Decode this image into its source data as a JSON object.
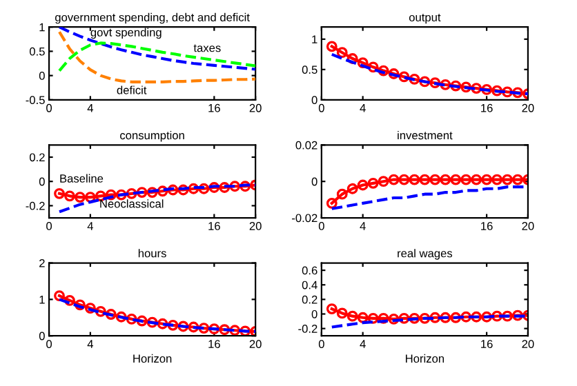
{
  "chart_data": [
    {
      "type": "line",
      "title": "government spending, debt and deficit",
      "x": [
        1,
        2,
        3,
        4,
        5,
        6,
        7,
        8,
        9,
        10,
        11,
        12,
        13,
        14,
        15,
        16,
        17,
        18,
        19,
        20
      ],
      "xlim": [
        0,
        20
      ],
      "xticks": [
        0,
        4,
        16,
        20
      ],
      "ylim": [
        -0.5,
        1
      ],
      "yticks": [
        -0.5,
        0,
        0.5,
        1
      ],
      "line_style": "dashed",
      "marker": "none",
      "legend": false,
      "grid": false,
      "series": [
        {
          "name": "govt spending",
          "color": "#0000ff",
          "values": [
            1.0,
            0.9,
            0.81,
            0.73,
            0.66,
            0.59,
            0.53,
            0.48,
            0.43,
            0.39,
            0.35,
            0.31,
            0.28,
            0.25,
            0.23,
            0.21,
            0.19,
            0.17,
            0.15,
            0.13
          ]
        },
        {
          "name": "taxes",
          "color": "#00ff00",
          "values": [
            0.1,
            0.35,
            0.52,
            0.63,
            0.67,
            0.66,
            0.63,
            0.6,
            0.56,
            0.52,
            0.48,
            0.45,
            0.41,
            0.38,
            0.35,
            0.32,
            0.29,
            0.26,
            0.23,
            0.2
          ]
        },
        {
          "name": "deficit",
          "color": "#ff8000",
          "values": [
            0.9,
            0.55,
            0.3,
            0.12,
            0.0,
            -0.07,
            -0.11,
            -0.13,
            -0.13,
            -0.13,
            -0.13,
            -0.12,
            -0.12,
            -0.11,
            -0.1,
            -0.1,
            -0.09,
            -0.08,
            -0.08,
            -0.07
          ]
        }
      ]
    },
    {
      "type": "line",
      "title": "output",
      "x": [
        1,
        2,
        3,
        4,
        5,
        6,
        7,
        8,
        9,
        10,
        11,
        12,
        13,
        14,
        15,
        16,
        17,
        18,
        19,
        20
      ],
      "xlim": [
        0,
        20
      ],
      "xticks": [
        0,
        4,
        16,
        20
      ],
      "ylim": [
        0,
        1.2
      ],
      "yticks": [
        0,
        0.5,
        1
      ],
      "legend": false,
      "grid": false,
      "series": [
        {
          "color": "#0000ff",
          "line_style": "dashed",
          "marker": "none",
          "values": [
            0.75,
            0.68,
            0.62,
            0.56,
            0.5,
            0.45,
            0.41,
            0.37,
            0.33,
            0.3,
            0.27,
            0.24,
            0.22,
            0.2,
            0.18,
            0.16,
            0.14,
            0.13,
            0.11,
            0.1
          ]
        },
        {
          "color": "#ff0000",
          "line_style": "solid",
          "marker": "circle",
          "values": [
            0.88,
            0.78,
            0.68,
            0.61,
            0.54,
            0.48,
            0.43,
            0.38,
            0.34,
            0.3,
            0.28,
            0.25,
            0.23,
            0.21,
            0.19,
            0.17,
            0.15,
            0.13,
            0.12,
            0.1
          ]
        }
      ]
    },
    {
      "type": "line",
      "title": "consumption",
      "x": [
        1,
        2,
        3,
        4,
        5,
        6,
        7,
        8,
        9,
        10,
        11,
        12,
        13,
        14,
        15,
        16,
        17,
        18,
        19,
        20
      ],
      "xlim": [
        0,
        20
      ],
      "xticks": [
        0,
        4,
        16,
        20
      ],
      "ylim": [
        -0.3,
        0.3
      ],
      "yticks": [
        -0.2,
        0,
        0.2
      ],
      "legend": false,
      "grid": false,
      "series": [
        {
          "name": "Neoclassical",
          "color": "#0000ff",
          "line_style": "dashed",
          "marker": "none",
          "values": [
            -0.25,
            -0.22,
            -0.19,
            -0.17,
            -0.15,
            -0.13,
            -0.11,
            -0.1,
            -0.09,
            -0.08,
            -0.07,
            -0.06,
            -0.06,
            -0.05,
            -0.05,
            -0.04,
            -0.04,
            -0.04,
            -0.03,
            -0.03
          ]
        },
        {
          "name": "Baseline",
          "color": "#ff0000",
          "line_style": "solid",
          "marker": "circle",
          "values": [
            -0.1,
            -0.12,
            -0.13,
            -0.13,
            -0.12,
            -0.11,
            -0.11,
            -0.1,
            -0.09,
            -0.09,
            -0.08,
            -0.07,
            -0.07,
            -0.06,
            -0.06,
            -0.05,
            -0.05,
            -0.04,
            -0.04,
            -0.03
          ]
        }
      ]
    },
    {
      "type": "line",
      "title": "investment",
      "x": [
        1,
        2,
        3,
        4,
        5,
        6,
        7,
        8,
        9,
        10,
        11,
        12,
        13,
        14,
        15,
        16,
        17,
        18,
        19,
        20
      ],
      "xlim": [
        0,
        20
      ],
      "xticks": [
        0,
        4,
        16,
        20
      ],
      "ylim": [
        -0.02,
        0.02
      ],
      "yticks": [
        -0.02,
        0,
        0.02
      ],
      "legend": false,
      "grid": false,
      "series": [
        {
          "color": "#0000ff",
          "line_style": "dashed",
          "marker": "none",
          "values": [
            -0.015,
            -0.014,
            -0.013,
            -0.012,
            -0.011,
            -0.01,
            -0.009,
            -0.009,
            -0.008,
            -0.007,
            -0.007,
            -0.006,
            -0.006,
            -0.005,
            -0.005,
            -0.004,
            -0.004,
            -0.003,
            -0.003,
            -0.003
          ]
        },
        {
          "color": "#ff0000",
          "line_style": "solid",
          "marker": "circle",
          "values": [
            -0.012,
            -0.007,
            -0.004,
            -0.002,
            -0.001,
            0.0,
            0.001,
            0.001,
            0.001,
            0.001,
            0.001,
            0.001,
            0.001,
            0.001,
            0.001,
            0.001,
            0.001,
            0.001,
            0.001,
            0.001
          ]
        }
      ]
    },
    {
      "type": "line",
      "title": "hours",
      "xlabel": "Horizon",
      "x": [
        1,
        2,
        3,
        4,
        5,
        6,
        7,
        8,
        9,
        10,
        11,
        12,
        13,
        14,
        15,
        16,
        17,
        18,
        19,
        20
      ],
      "xlim": [
        0,
        20
      ],
      "xticks": [
        0,
        4,
        16,
        20
      ],
      "ylim": [
        0,
        2
      ],
      "yticks": [
        0,
        1,
        2
      ],
      "legend": false,
      "grid": false,
      "series": [
        {
          "color": "#0000ff",
          "line_style": "dashed",
          "marker": "none",
          "values": [
            1.0,
            0.9,
            0.8,
            0.72,
            0.64,
            0.57,
            0.51,
            0.45,
            0.4,
            0.36,
            0.32,
            0.29,
            0.26,
            0.23,
            0.21,
            0.19,
            0.17,
            0.15,
            0.13,
            0.12
          ]
        },
        {
          "color": "#ff0000",
          "line_style": "solid",
          "marker": "circle",
          "values": [
            1.1,
            0.97,
            0.85,
            0.76,
            0.67,
            0.59,
            0.52,
            0.46,
            0.41,
            0.37,
            0.33,
            0.29,
            0.26,
            0.24,
            0.21,
            0.19,
            0.17,
            0.15,
            0.13,
            0.12
          ]
        }
      ]
    },
    {
      "type": "line",
      "title": "real wages",
      "xlabel": "Horizon",
      "x": [
        1,
        2,
        3,
        4,
        5,
        6,
        7,
        8,
        9,
        10,
        11,
        12,
        13,
        14,
        15,
        16,
        17,
        18,
        19,
        20
      ],
      "xlim": [
        0,
        20
      ],
      "xticks": [
        0,
        4,
        16,
        20
      ],
      "ylim": [
        -0.3,
        0.7
      ],
      "yticks": [
        -0.2,
        0,
        0.2,
        0.4,
        0.6
      ],
      "legend": false,
      "grid": false,
      "series": [
        {
          "color": "#0000ff",
          "line_style": "dashed",
          "marker": "none",
          "values": [
            -0.18,
            -0.16,
            -0.14,
            -0.12,
            -0.11,
            -0.1,
            -0.09,
            -0.08,
            -0.07,
            -0.06,
            -0.06,
            -0.05,
            -0.05,
            -0.04,
            -0.04,
            -0.04,
            -0.03,
            -0.03,
            -0.03,
            -0.03
          ]
        },
        {
          "color": "#ff0000",
          "line_style": "solid",
          "marker": "circle",
          "values": [
            0.07,
            0.01,
            -0.03,
            -0.05,
            -0.06,
            -0.06,
            -0.07,
            -0.06,
            -0.06,
            -0.06,
            -0.05,
            -0.05,
            -0.05,
            -0.04,
            -0.04,
            -0.04,
            -0.03,
            -0.03,
            -0.02,
            -0.02
          ]
        }
      ]
    }
  ]
}
